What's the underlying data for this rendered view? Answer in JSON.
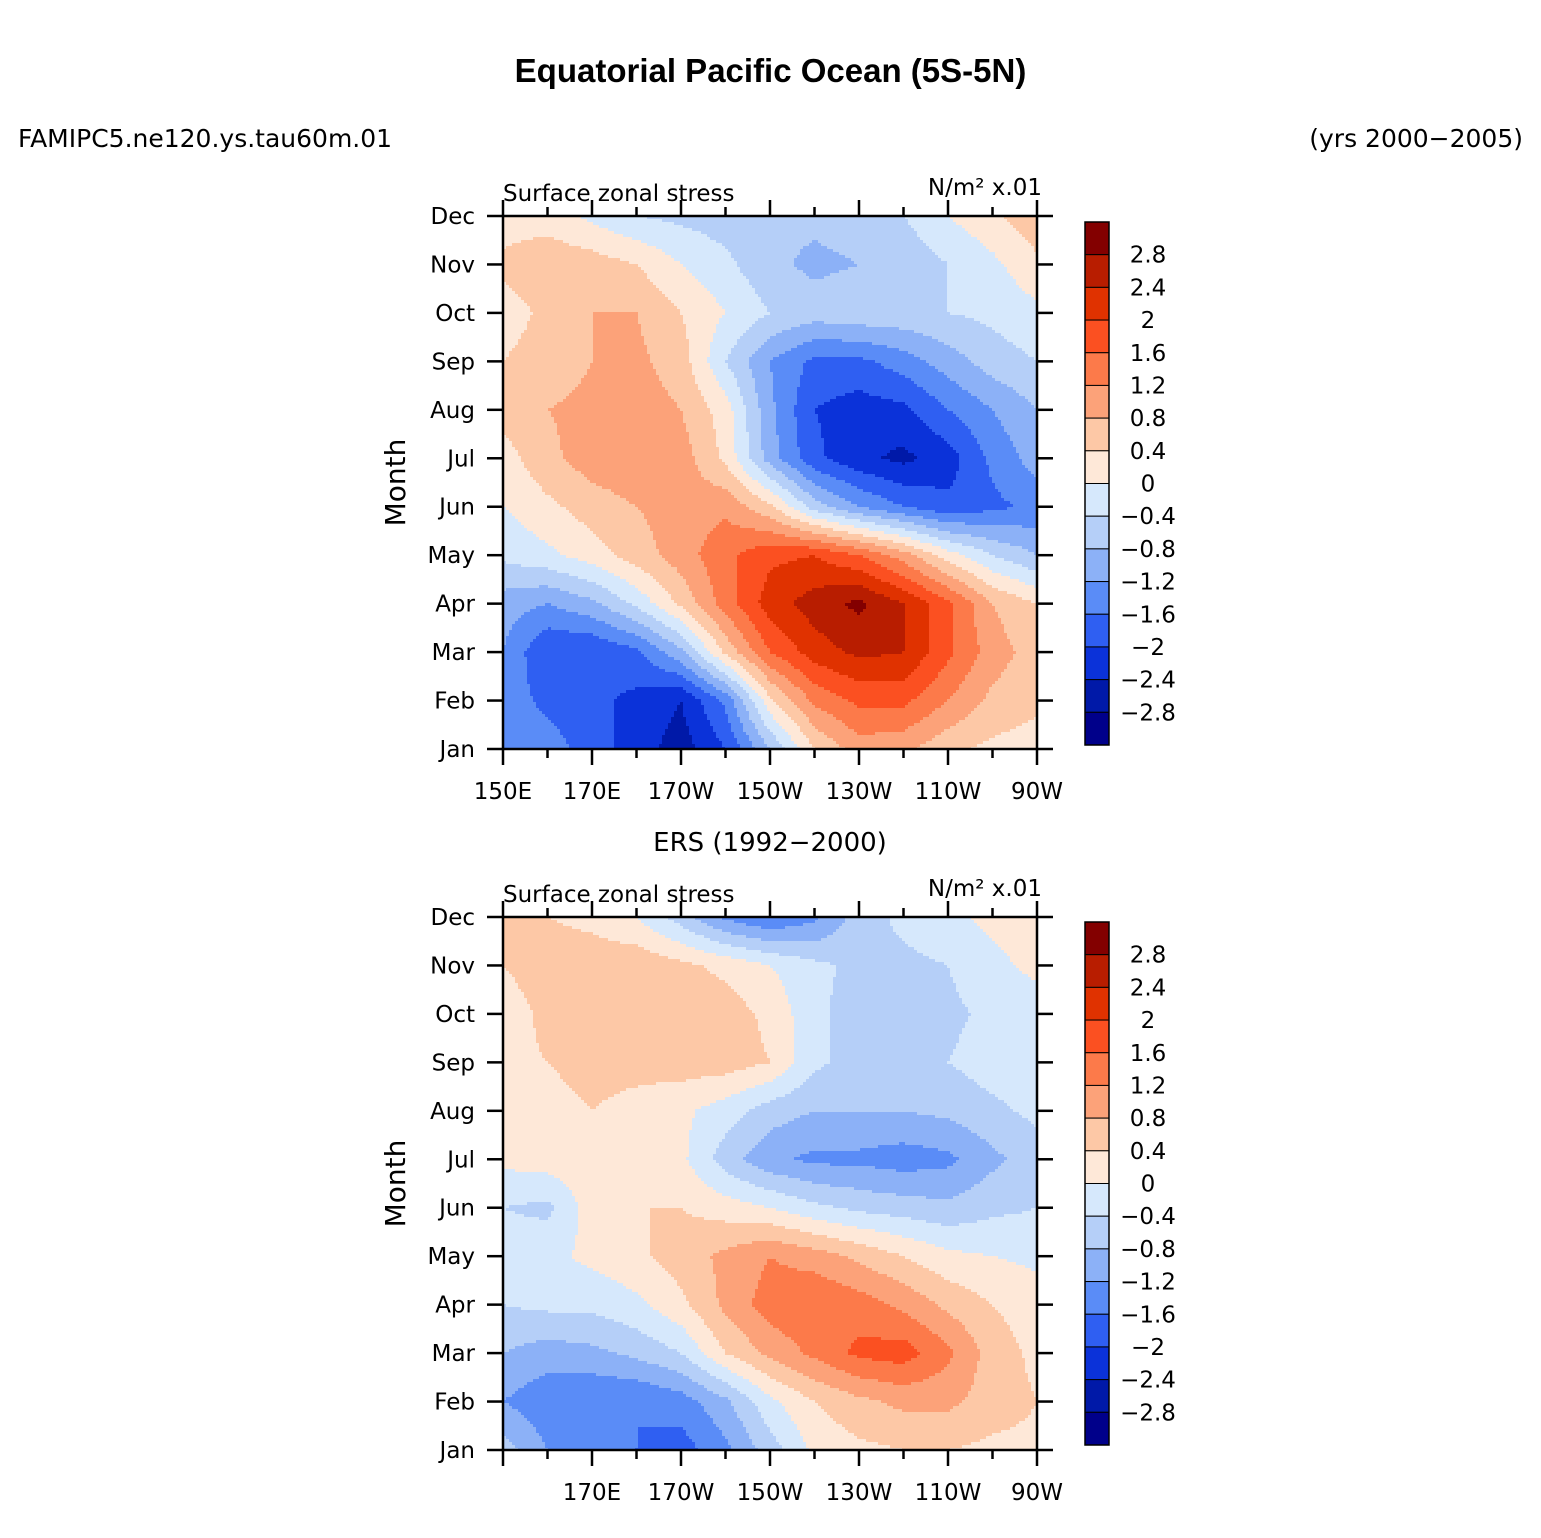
{
  "header": {
    "title": "Equatorial Pacific Ocean (5S-5N)",
    "case_name": "FAMIPC5.ne120.ys.tau60m.01",
    "years": "(yrs 2000−2005)"
  },
  "colorbar": {
    "labels": [
      "2.8",
      "2.4",
      "2",
      "1.6",
      "1.2",
      "0.8",
      "0.4",
      "0",
      "−0.4",
      "−0.8",
      "−1.2",
      "−1.6",
      "−2",
      "−2.4",
      "−2.8"
    ],
    "colors": [
      "#830000",
      "#b81d00",
      "#e03200",
      "#fb5021",
      "#fc7a4a",
      "#fca279",
      "#fdc8a6",
      "#fee8d8",
      "#d6e8fc",
      "#b5cff8",
      "#8cb1f7",
      "#5a8cf7",
      "#2f5ff2",
      "#0b32d9",
      "#0019a8",
      "#00008a"
    ]
  },
  "chart_data": [
    {
      "type": "heatmap",
      "panel_title": "",
      "left_title": "Surface zonal stress",
      "units": "N/m² x.01",
      "ylabel": "Month",
      "xlabel": "",
      "y_tick_labels": [
        "Jan",
        "Feb",
        "Mar",
        "Apr",
        "May",
        "Jun",
        "Jul",
        "Aug",
        "Sep",
        "Oct",
        "Nov",
        "Dec"
      ],
      "x_tick_labels": [
        "150E",
        "170E",
        "170W",
        "150W",
        "130W",
        "110W",
        "90W"
      ],
      "x_range": [
        150,
        270
      ],
      "contour_levels": [
        -2.8,
        -2.4,
        -2,
        -1.6,
        -1.2,
        -0.8,
        -0.4,
        0,
        0.4,
        0.8,
        1.2,
        1.6,
        2,
        2.4,
        2.8
      ],
      "x": [
        150,
        160,
        170,
        180,
        190,
        200,
        210,
        220,
        230,
        240,
        250,
        260,
        270
      ],
      "z": [
        [
          -1.3,
          -1.4,
          -1.8,
          -2.2,
          -2.6,
          -2.0,
          -0.8,
          0.4,
          1.0,
          0.9,
          0.5,
          0.3,
          0.2
        ],
        [
          -1.4,
          -1.7,
          -1.9,
          -2.1,
          -2.4,
          -1.5,
          0.3,
          1.3,
          1.7,
          1.7,
          1.2,
          0.7,
          0.5
        ],
        [
          -1.2,
          -2.0,
          -2.0,
          -1.7,
          -0.9,
          0.5,
          1.6,
          2.2,
          2.5,
          2.4,
          1.7,
          1.0,
          0.6
        ],
        [
          -1.0,
          -1.2,
          -0.9,
          -0.3,
          0.5,
          1.4,
          2.2,
          2.6,
          2.9,
          2.4,
          1.7,
          0.8,
          0.4
        ],
        [
          -0.3,
          -0.1,
          0.2,
          0.6,
          1.0,
          1.5,
          1.9,
          2.0,
          1.6,
          1.0,
          0.2,
          -0.4,
          -0.8
        ],
        [
          0.0,
          0.3,
          0.6,
          0.8,
          1.0,
          1.1,
          0.5,
          -0.6,
          -1.2,
          -1.6,
          -1.9,
          -1.7,
          -1.5
        ],
        [
          0.2,
          0.7,
          1.0,
          1.1,
          1.0,
          0.3,
          -1.0,
          -1.9,
          -2.3,
          -2.5,
          -2.2,
          -1.5,
          -1.0
        ],
        [
          0.6,
          0.8,
          0.9,
          1.0,
          0.8,
          0.2,
          -1.1,
          -2.0,
          -2.2,
          -2.1,
          -1.6,
          -1.2,
          -0.8
        ],
        [
          0.4,
          0.6,
          0.8,
          0.9,
          0.6,
          -0.4,
          -1.2,
          -1.7,
          -1.7,
          -1.4,
          -1.0,
          -0.6,
          -0.4
        ],
        [
          0.2,
          0.5,
          0.8,
          0.8,
          0.4,
          0.0,
          -0.4,
          -0.6,
          -0.5,
          -0.5,
          -0.4,
          -0.3,
          -0.1
        ],
        [
          0.5,
          0.7,
          0.6,
          0.4,
          0.0,
          -0.3,
          -0.7,
          -0.9,
          -0.8,
          -0.7,
          -0.4,
          -0.1,
          0.3
        ],
        [
          0.2,
          0.2,
          -0.1,
          -0.4,
          -0.5,
          -0.6,
          -0.7,
          -0.7,
          -0.6,
          -0.4,
          0.0,
          0.3,
          0.7
        ]
      ]
    },
    {
      "type": "heatmap",
      "panel_title": "ERS (1992−2000)",
      "left_title": "Surface zonal stress",
      "units": "N/m² x.01",
      "ylabel": "Month",
      "xlabel": "",
      "y_tick_labels": [
        "Jan",
        "Feb",
        "Mar",
        "Apr",
        "May",
        "Jun",
        "Jul",
        "Aug",
        "Sep",
        "Oct",
        "Nov",
        "Dec"
      ],
      "x_tick_labels": [
        "170E",
        "170W",
        "150W",
        "130W",
        "110W",
        "90W"
      ],
      "x_range": [
        150,
        270
      ],
      "contour_levels": [
        -2.8,
        -2.4,
        -2,
        -1.6,
        -1.2,
        -0.8,
        -0.4,
        0,
        0.4,
        0.8,
        1.2,
        1.6,
        2,
        2.4,
        2.8
      ],
      "x": [
        150,
        160,
        170,
        180,
        190,
        200,
        210,
        220,
        230,
        240,
        250,
        260,
        270
      ],
      "z": [
        [
          -0.6,
          -1.2,
          -1.4,
          -1.6,
          -1.8,
          -1.3,
          -0.6,
          0.1,
          0.3,
          0.4,
          0.4,
          0.3,
          0.3
        ],
        [
          -1.2,
          -1.5,
          -1.6,
          -1.6,
          -1.4,
          -0.9,
          -0.1,
          0.4,
          0.7,
          0.9,
          0.9,
          0.6,
          0.4
        ],
        [
          -0.8,
          -1.0,
          -0.9,
          -0.7,
          -0.4,
          0.4,
          0.9,
          1.3,
          1.7,
          1.8,
          1.3,
          0.6,
          0.3
        ],
        [
          -0.4,
          -0.3,
          -0.3,
          -0.1,
          0.3,
          0.9,
          1.4,
          1.6,
          1.4,
          1.1,
          0.7,
          0.4,
          0.2
        ],
        [
          -0.2,
          -0.1,
          0.1,
          0.3,
          0.6,
          0.9,
          1.2,
          1.0,
          0.7,
          0.4,
          0.1,
          0.0,
          -0.1
        ],
        [
          -0.4,
          -0.5,
          0.2,
          0.4,
          0.4,
          0.2,
          0.0,
          -0.3,
          -0.5,
          -0.6,
          -0.7,
          -0.5,
          -0.4
        ],
        [
          0.1,
          0.2,
          0.3,
          0.3,
          0.1,
          -0.6,
          -1.1,
          -1.3,
          -1.3,
          -1.4,
          -1.3,
          -0.9,
          -0.6
        ],
        [
          0.2,
          0.3,
          0.4,
          0.3,
          0.1,
          -0.2,
          -0.6,
          -0.8,
          -0.8,
          -0.8,
          -0.7,
          -0.5,
          -0.3
        ],
        [
          0.3,
          0.4,
          0.5,
          0.5,
          0.6,
          0.6,
          0.4,
          -0.3,
          -0.6,
          -0.5,
          -0.4,
          -0.2,
          -0.1
        ],
        [
          0.2,
          0.5,
          0.6,
          0.5,
          0.6,
          0.6,
          0.3,
          -0.3,
          -0.6,
          -0.7,
          -0.5,
          -0.3,
          -0.2
        ],
        [
          0.4,
          0.6,
          0.6,
          0.7,
          0.5,
          0.3,
          0.0,
          -0.3,
          -0.5,
          -0.5,
          -0.4,
          -0.1,
          0.1
        ],
        [
          0.7,
          0.4,
          0.3,
          0.0,
          -0.6,
          -1.3,
          -1.6,
          -1.3,
          -0.6,
          -0.3,
          -0.1,
          0.1,
          0.2
        ]
      ]
    }
  ]
}
